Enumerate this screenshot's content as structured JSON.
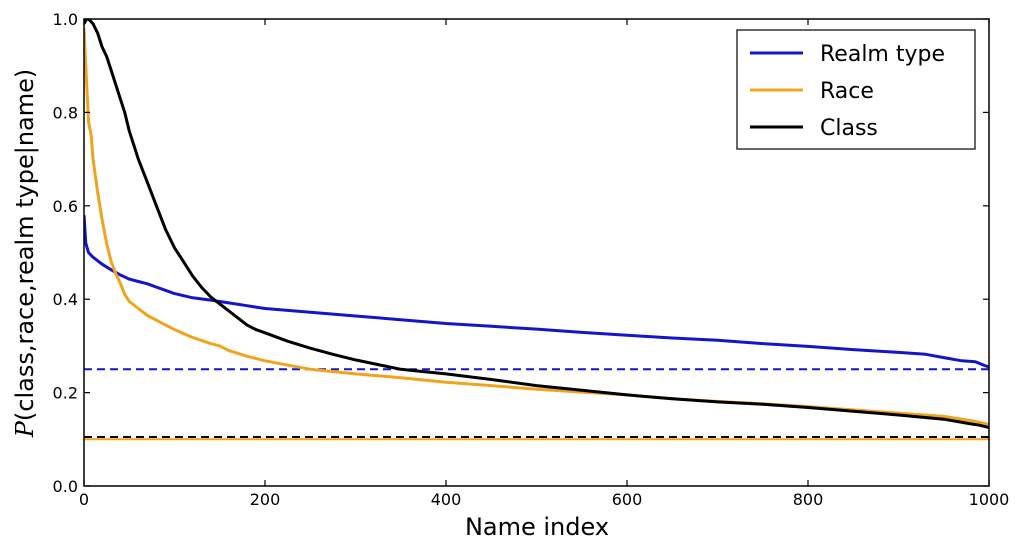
{
  "chart_data": {
    "type": "line",
    "xlabel": "Name index",
    "ylabel": "P(class,race,realm type|name)",
    "ylabel_parts": {
      "italic": "P",
      "rest": "(class,race,realm type|name)"
    },
    "xlim": [
      0,
      1000
    ],
    "ylim": [
      0,
      1.0
    ],
    "xticks": [
      0,
      200,
      400,
      600,
      800,
      1000
    ],
    "xtick_labels": [
      "0",
      "200",
      "400",
      "600",
      "800",
      "1000"
    ],
    "yticks": [
      0,
      0.2,
      0.4,
      0.6,
      0.8,
      1.0
    ],
    "ytick_labels": [
      "0.0",
      "0.2",
      "0.4",
      "0.6",
      "0.8",
      "1.0"
    ],
    "grid": false,
    "legend_position": "top-right",
    "series": [
      {
        "name": "Realm type",
        "color": "#1515c8",
        "x": [
          0,
          2,
          5,
          10,
          20,
          30,
          40,
          50,
          60,
          70,
          80,
          90,
          100,
          120,
          140,
          160,
          180,
          200,
          250,
          300,
          350,
          400,
          450,
          500,
          550,
          600,
          650,
          700,
          750,
          800,
          850,
          900,
          930,
          950,
          970,
          985,
          990,
          995,
          1000
        ],
        "y": [
          0.58,
          0.52,
          0.5,
          0.49,
          0.475,
          0.463,
          0.452,
          0.443,
          0.438,
          0.433,
          0.426,
          0.419,
          0.412,
          0.403,
          0.398,
          0.392,
          0.386,
          0.38,
          0.372,
          0.364,
          0.356,
          0.348,
          0.342,
          0.336,
          0.329,
          0.323,
          0.317,
          0.312,
          0.305,
          0.299,
          0.292,
          0.286,
          0.282,
          0.275,
          0.268,
          0.266,
          0.262,
          0.258,
          0.255
        ]
      },
      {
        "name": "Race",
        "color": "#f0a41e",
        "x": [
          0,
          2,
          5,
          8,
          10,
          15,
          20,
          25,
          30,
          35,
          40,
          45,
          50,
          60,
          70,
          80,
          90,
          100,
          120,
          140,
          150,
          160,
          180,
          200,
          250,
          300,
          350,
          400,
          450,
          500,
          550,
          600,
          650,
          700,
          750,
          800,
          850,
          900,
          950,
          980,
          1000
        ],
        "y": [
          0.98,
          0.9,
          0.78,
          0.75,
          0.7,
          0.63,
          0.57,
          0.52,
          0.48,
          0.455,
          0.435,
          0.41,
          0.395,
          0.38,
          0.365,
          0.355,
          0.345,
          0.335,
          0.318,
          0.305,
          0.3,
          0.29,
          0.278,
          0.268,
          0.25,
          0.24,
          0.232,
          0.222,
          0.215,
          0.207,
          0.201,
          0.195,
          0.187,
          0.181,
          0.176,
          0.17,
          0.163,
          0.156,
          0.149,
          0.14,
          0.132
        ]
      },
      {
        "name": "Class",
        "color": "#000000",
        "x": [
          0,
          3,
          5,
          10,
          15,
          20,
          25,
          30,
          35,
          40,
          45,
          50,
          60,
          70,
          80,
          90,
          100,
          110,
          120,
          130,
          140,
          150,
          160,
          170,
          180,
          190,
          200,
          225,
          250,
          275,
          300,
          325,
          350,
          375,
          400,
          450,
          500,
          550,
          600,
          650,
          700,
          750,
          800,
          850,
          900,
          950,
          980,
          990,
          1000
        ],
        "y": [
          0.99,
          1.0,
          1.0,
          0.99,
          0.97,
          0.94,
          0.92,
          0.89,
          0.86,
          0.83,
          0.8,
          0.76,
          0.7,
          0.65,
          0.6,
          0.55,
          0.51,
          0.48,
          0.45,
          0.425,
          0.405,
          0.39,
          0.375,
          0.36,
          0.345,
          0.335,
          0.328,
          0.31,
          0.295,
          0.282,
          0.27,
          0.26,
          0.25,
          0.245,
          0.24,
          0.228,
          0.215,
          0.205,
          0.195,
          0.187,
          0.18,
          0.175,
          0.168,
          0.16,
          0.152,
          0.143,
          0.133,
          0.13,
          0.125
        ]
      }
    ],
    "reference_lines": [
      {
        "y": 0.25,
        "color": "#1515c8",
        "style": "dashed"
      },
      {
        "y": 0.105,
        "color": "#000000",
        "style": "dashed"
      },
      {
        "y": 0.1,
        "color": "#f0a41e",
        "style": "solid"
      }
    ]
  }
}
